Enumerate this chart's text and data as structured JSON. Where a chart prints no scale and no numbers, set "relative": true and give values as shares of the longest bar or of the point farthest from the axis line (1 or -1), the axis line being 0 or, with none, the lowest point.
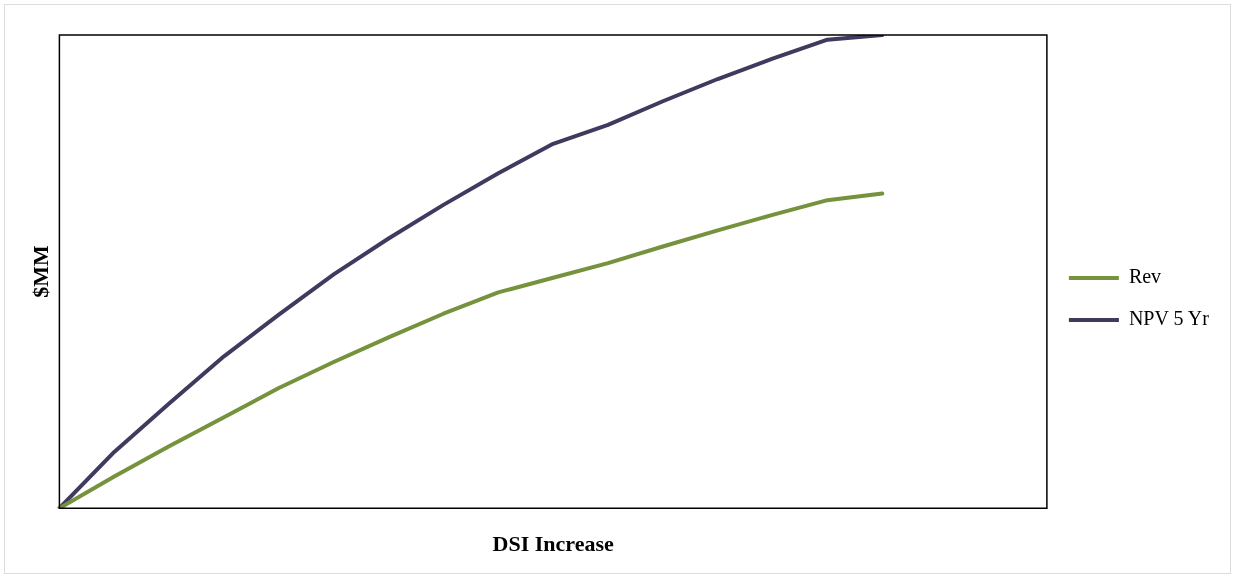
{
  "chart_data": {
    "type": "line",
    "xlabel": "DSI Increase",
    "ylabel": "$MM",
    "relative": true,
    "legend": "right",
    "grid": false,
    "marker": "none",
    "line_style": "solid",
    "categories": [
      null,
      null,
      null,
      null,
      null,
      null,
      null,
      null,
      null,
      null,
      null,
      null,
      null,
      null,
      null,
      null,
      null,
      null,
      null
    ],
    "series": [
      {
        "name": "Rev",
        "color": "#76923c",
        "values": [
          0,
          0.067,
          0.131,
          0.192,
          0.254,
          0.309,
          0.361,
          0.411,
          0.456,
          0.487,
          0.518,
          0.553,
          0.587,
          0.62,
          0.651,
          0.665,
          null,
          null,
          null
        ]
      },
      {
        "name": "NPV 5 Yr",
        "color": "#3f3b5e",
        "values": [
          0,
          0.119,
          0.221,
          0.321,
          0.409,
          0.494,
          0.57,
          0.641,
          0.708,
          0.77,
          0.81,
          0.86,
          0.907,
          0.95,
          0.99,
          1,
          null,
          null,
          null
        ]
      }
    ]
  }
}
